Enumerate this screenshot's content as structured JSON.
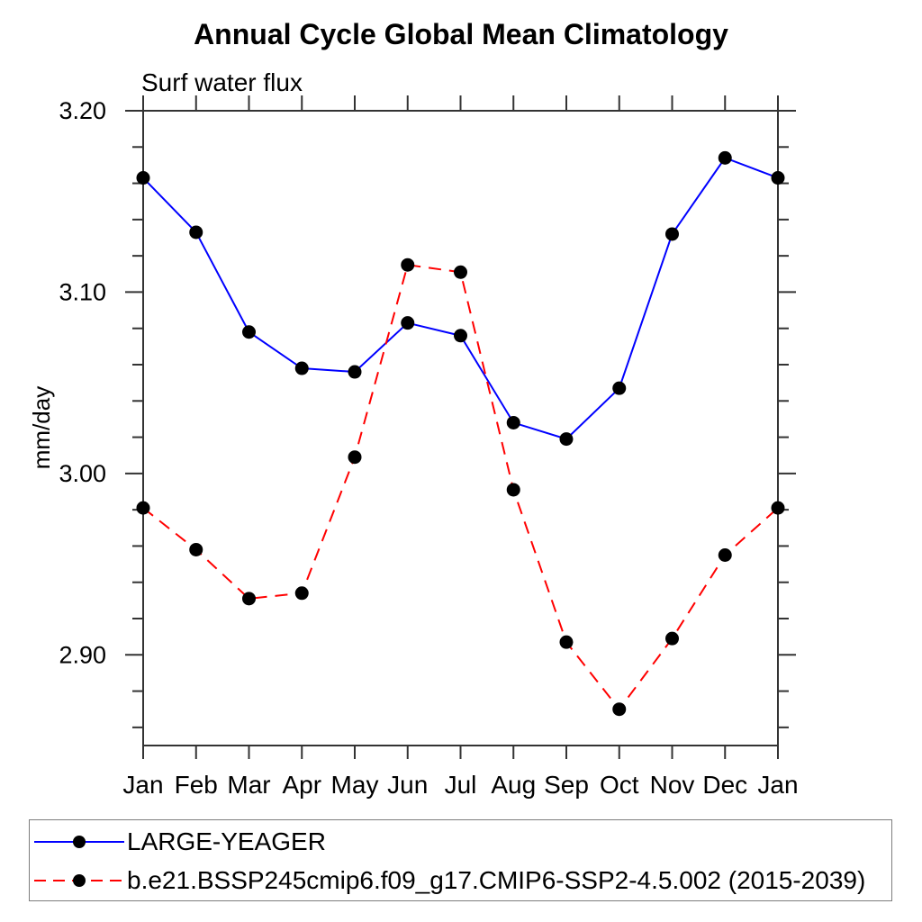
{
  "title": "Annual Cycle Global Mean Climatology",
  "subtitle": "Surf water flux",
  "ylabel": "mm/day",
  "colors": {
    "series1": "#0000ff",
    "series2": "#ff0000",
    "marker": "#000000",
    "axis": "#333333",
    "legend_border": "#7d7d7d",
    "background": "#ffffff"
  },
  "chart_data": {
    "type": "line",
    "title": "Annual Cycle Global Mean Climatology",
    "subtitle": "Surf water flux",
    "xlabel": "",
    "ylabel": "mm/day",
    "categories": [
      "Jan",
      "Feb",
      "Mar",
      "Apr",
      "May",
      "Jun",
      "Jul",
      "Aug",
      "Sep",
      "Oct",
      "Nov",
      "Dec",
      "Jan"
    ],
    "series": [
      {
        "name": "LARGE-YEAGER",
        "line_style": "solid",
        "color": "#0000ff",
        "marker": "filled-circle",
        "marker_color": "#000000",
        "values": [
          3.163,
          3.133,
          3.078,
          3.058,
          3.056,
          3.083,
          3.076,
          3.028,
          3.019,
          3.047,
          3.132,
          3.174,
          3.163
        ]
      },
      {
        "name": "b.e21.BSSP245cmip6.f09_g17.CMIP6-SSP2-4.5.002 (2015-2039)",
        "line_style": "dashed",
        "color": "#ff0000",
        "marker": "filled-circle",
        "marker_color": "#000000",
        "values": [
          2.981,
          2.958,
          2.931,
          2.934,
          3.009,
          3.115,
          3.111,
          2.991,
          2.907,
          2.87,
          2.909,
          2.955,
          2.981
        ]
      }
    ],
    "ylim": [
      2.85,
      3.2
    ],
    "ytick_values": [
      3.2,
      3.1,
      3.0,
      2.9
    ],
    "ytick_labels": [
      "3.20",
      "3.10",
      "3.00",
      "2.90"
    ],
    "ytick_minor_step": 0.02,
    "grid": false,
    "frame": true,
    "ticks": "outward-all-sides",
    "legend_position": "bottom"
  }
}
